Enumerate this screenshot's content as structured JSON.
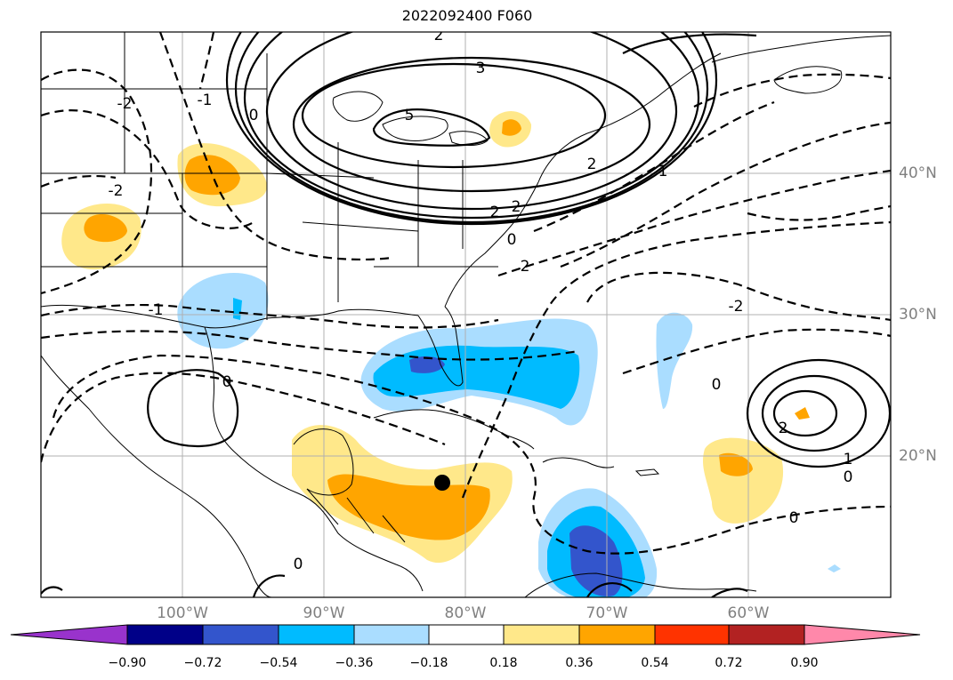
{
  "title": "2022092400 F060",
  "latitude_labels": [
    "40°N",
    "30°N",
    "20°N"
  ],
  "longitude_labels": [
    "100°W",
    "90°W",
    "80°W",
    "70°W",
    "60°W"
  ],
  "contour_labels": {
    "north_high": [
      "3",
      "5",
      "2",
      "2",
      "2",
      "2"
    ],
    "dashed": [
      "-2",
      "-2",
      "-1",
      "0",
      "0",
      "-1",
      "1",
      "2",
      "0",
      "0",
      "-2"
    ],
    "atlantic_high": [
      "2",
      "1",
      "0"
    ],
    "central_america": [
      "0",
      "0"
    ]
  },
  "colorbar": {
    "ticks": [
      "−0.90",
      "−0.72",
      "−0.54",
      "−0.36",
      "−0.18",
      "0.18",
      "0.36",
      "0.54",
      "0.72",
      "0.90"
    ],
    "colors": [
      "#9933cc",
      "#000088",
      "#3355cc",
      "#00bbff",
      "#aaddff",
      "#ffffff",
      "#ffe88a",
      "#ffa500",
      "#ff3300",
      "#b22222",
      "#ff88aa"
    ]
  },
  "marker": "storm-center-dot"
}
